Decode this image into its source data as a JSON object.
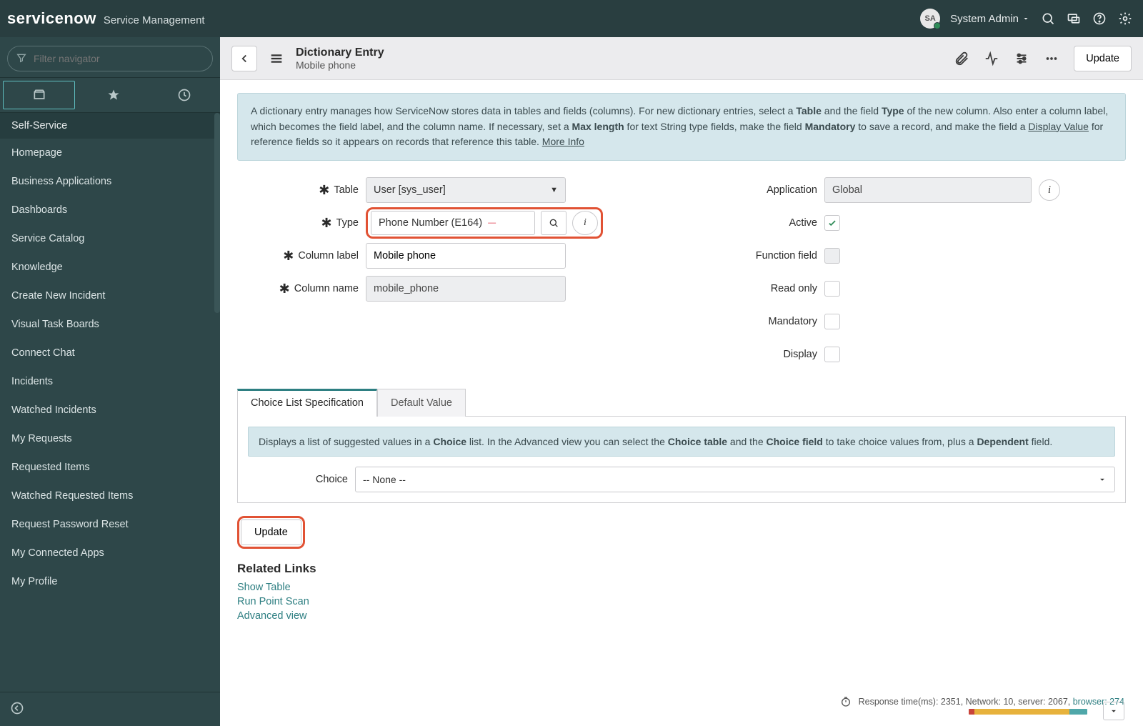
{
  "topbar": {
    "logo": "servicenow",
    "product": "Service Management",
    "avatar_initials": "SA",
    "user_name": "System Admin"
  },
  "sidebar": {
    "filter_placeholder": "Filter navigator",
    "heading": "Self-Service",
    "items": [
      "Homepage",
      "Business Applications",
      "Dashboards",
      "Service Catalog",
      "Knowledge",
      "Create New Incident",
      "Visual Task Boards",
      "Connect Chat",
      "Incidents",
      "Watched Incidents",
      "My Requests",
      "Requested Items",
      "Watched Requested Items",
      "Request Password Reset",
      "My Connected Apps",
      "My Profile"
    ]
  },
  "header": {
    "title": "Dictionary Entry",
    "subtitle": "Mobile phone",
    "update_label": "Update"
  },
  "info_html": "A dictionary entry manages how ServiceNow stores data in tables and fields (columns). For new dictionary entries, select a <b>Table</b> and the field <b>Type</b> of the new column. Also enter a column label, which becomes the field label, and the column name. If necessary, set a <b>Max length</b> for text String type fields, make the field <b>Mandatory</b> to save a record, and make the field a <span class='u'>Display Value</span> for reference fields so it appears on records that reference this table. <span class='u'>More Info</span>",
  "form": {
    "left": {
      "table_label": "Table",
      "table_value": "User [sys_user]",
      "type_label": "Type",
      "type_value": "Phone Number (E164)",
      "column_label_label": "Column label",
      "column_label_value": "Mobile phone",
      "column_name_label": "Column name",
      "column_name_value": "mobile_phone"
    },
    "right": {
      "application_label": "Application",
      "application_value": "Global",
      "active_label": "Active",
      "active_checked": true,
      "function_label": "Function field",
      "readonly_label": "Read only",
      "mandatory_label": "Mandatory",
      "display_label": "Display"
    }
  },
  "tabs": {
    "tab1": "Choice List Specification",
    "tab2": "Default Value",
    "choice_info_html": "Displays a list of suggested values in a <b>Choice</b> list. In the Advanced view you can select the <b>Choice table</b> and the <b>Choice field</b> to take choice values from, plus a <b>Dependent</b> field.",
    "choice_label": "Choice",
    "choice_value": "-- None --"
  },
  "update_label": "Update",
  "related": {
    "heading": "Related Links",
    "links": [
      "Show Table",
      "Run Point Scan",
      "Advanced view"
    ]
  },
  "footer": {
    "prefix": "Response time(ms): 2351, Network: 10, server: 2067, ",
    "browser": "browser: 274",
    "progress": {
      "colors": [
        "#c9443a",
        "#e7b23c",
        "#4fa7a9"
      ],
      "widths_pct": [
        5,
        80,
        15
      ]
    }
  }
}
